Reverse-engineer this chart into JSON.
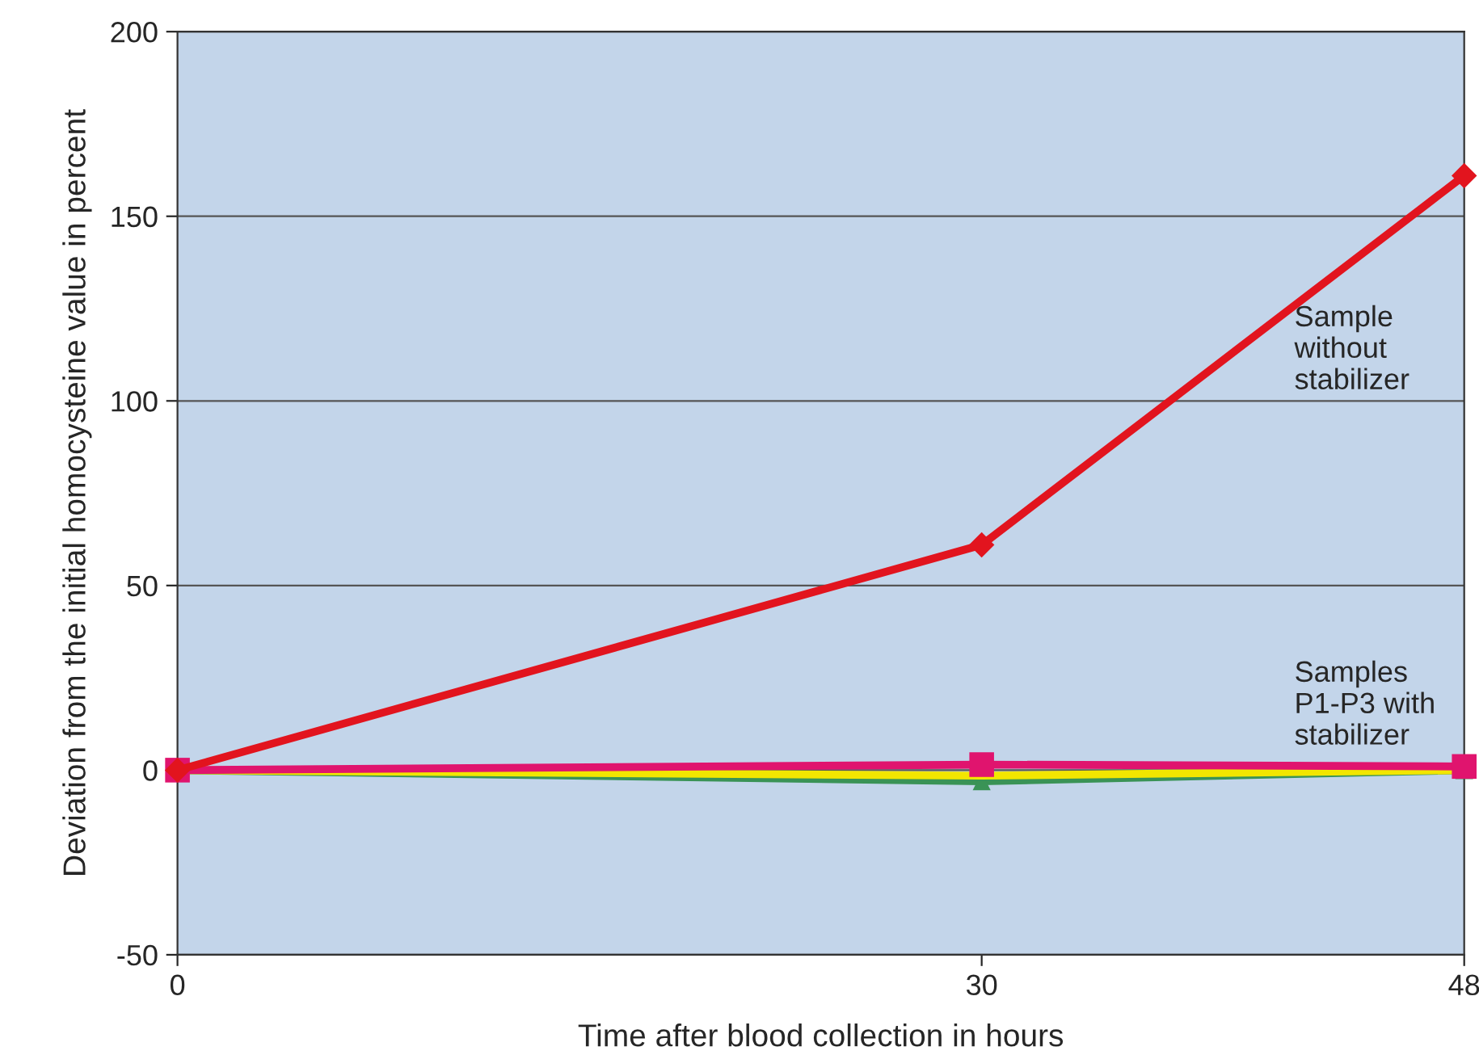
{
  "chart_data": {
    "type": "line",
    "xlabel": "Time after blood collection in hours",
    "ylabel": "Deviation from the initial homocysteine value in percent",
    "x": [
      0,
      30,
      48
    ],
    "xlim": [
      0,
      48
    ],
    "xticks": [
      0,
      30,
      48
    ],
    "ylim": [
      -50,
      200
    ],
    "yticks": [
      -50,
      0,
      50,
      100,
      150,
      200
    ],
    "grid": "y",
    "legend": false,
    "line_style": "solid",
    "series": [
      {
        "color": "#3a9356",
        "marker": "triangle",
        "values": [
          0,
          -3,
          0
        ]
      },
      {
        "color": "#f2e600",
        "marker": "none",
        "values": [
          0,
          -1.5,
          0
        ]
      },
      {
        "color": "#e0146e",
        "marker": "square",
        "values": [
          0,
          1.5,
          1
        ]
      },
      {
        "color": "#e2141e",
        "marker": "diamond",
        "values": [
          0,
          61,
          161
        ]
      }
    ],
    "annotations": [
      "Sample without stabilizer",
      "Samples P1-P3 with stabilizer"
    ]
  }
}
